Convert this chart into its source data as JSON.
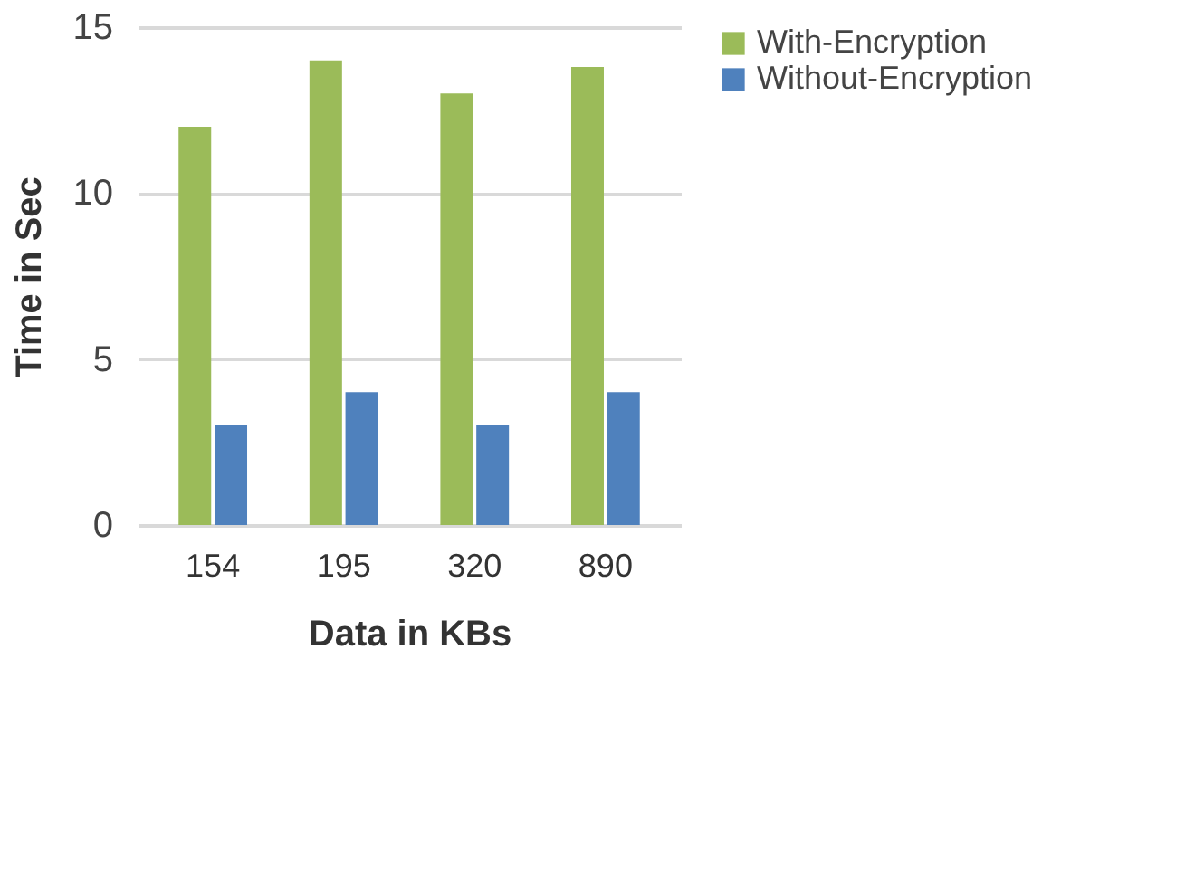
{
  "chart_data": {
    "type": "bar",
    "xlabel": "Data in KBs",
    "ylabel": "Time in Sec",
    "categories": [
      "154",
      "195",
      "320",
      "890"
    ],
    "series": [
      {
        "name": "With-Encryption",
        "color": "#9bbb59",
        "values": [
          12,
          14,
          13,
          13.8
        ]
      },
      {
        "name": "Without-Encryption",
        "color": "#4f81bd",
        "values": [
          3,
          4,
          3,
          4
        ]
      }
    ],
    "ylim": [
      0,
      15
    ],
    "yticks": [
      0,
      5,
      10,
      15
    ],
    "grid": "y",
    "legend": "right"
  }
}
